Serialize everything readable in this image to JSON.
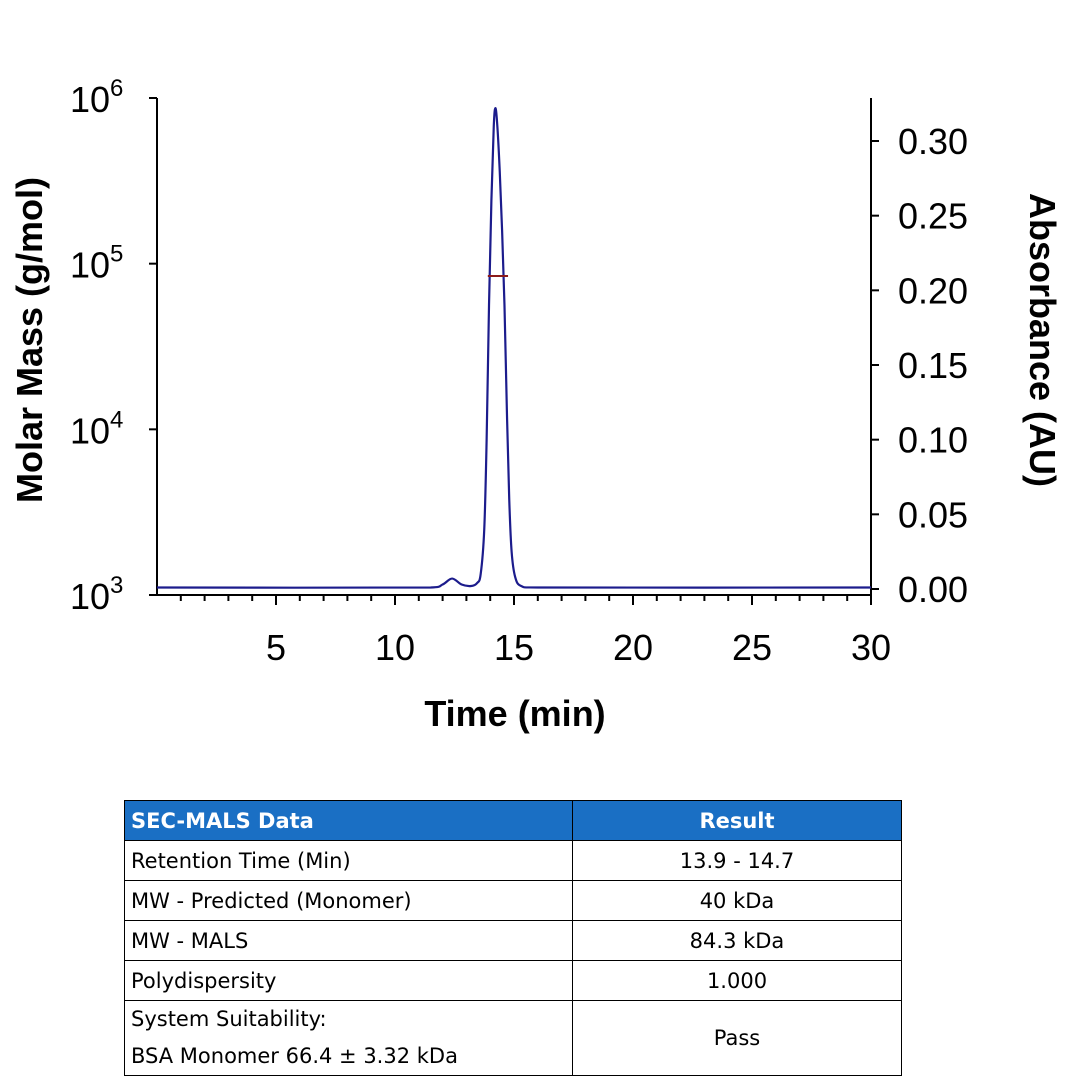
{
  "chart_data": {
    "type": "line",
    "xlabel": "Time (min)",
    "ylabel_left": "Molar Mass (g/mol)",
    "ylabel_right": "Absorbance (AU)",
    "xlim": [
      0,
      30
    ],
    "x_ticks": [
      "5",
      "10",
      "15",
      "20",
      "25",
      "30"
    ],
    "x_tick_values": [
      5,
      10,
      15,
      20,
      25,
      30
    ],
    "ylim_left": [
      1000,
      1000000
    ],
    "y_left_scale": "log",
    "y_left_ticks": [
      {
        "base": "10",
        "exp": "3",
        "value": 1000
      },
      {
        "base": "10",
        "exp": "4",
        "value": 10000
      },
      {
        "base": "10",
        "exp": "5",
        "value": 100000
      },
      {
        "base": "10",
        "exp": "6",
        "value": 1000000
      }
    ],
    "ylim_right": [
      0,
      0.33
    ],
    "y_right_ticks": [
      "0.00",
      "0.05",
      "0.10",
      "0.15",
      "0.20",
      "0.25",
      "0.30"
    ],
    "y_right_tick_values": [
      0,
      0.05,
      0.1,
      0.15,
      0.2,
      0.25,
      0.3
    ],
    "grid": false,
    "series": [
      {
        "axis": "right",
        "color": "#1c1c8c",
        "points": [
          [
            0,
            0.001
          ],
          [
            11.5,
            0.001
          ],
          [
            12.0,
            0.003
          ],
          [
            12.4,
            0.007
          ],
          [
            12.8,
            0.003
          ],
          [
            13.2,
            0.002
          ],
          [
            13.45,
            0.004
          ],
          [
            13.6,
            0.01
          ],
          [
            13.75,
            0.04
          ],
          [
            13.85,
            0.1
          ],
          [
            13.95,
            0.19
          ],
          [
            14.05,
            0.26
          ],
          [
            14.15,
            0.31
          ],
          [
            14.22,
            0.322
          ],
          [
            14.3,
            0.31
          ],
          [
            14.4,
            0.28
          ],
          [
            14.5,
            0.24
          ],
          [
            14.6,
            0.19
          ],
          [
            14.7,
            0.12
          ],
          [
            14.8,
            0.06
          ],
          [
            14.9,
            0.025
          ],
          [
            15.05,
            0.008
          ],
          [
            15.3,
            0.002
          ],
          [
            16,
            0.001
          ],
          [
            30,
            0.001
          ]
        ]
      },
      {
        "axis": "left",
        "color": "#8b1a1a",
        "points": [
          [
            13.9,
            84300
          ],
          [
            14.75,
            84300
          ]
        ]
      }
    ]
  },
  "table": {
    "headers": [
      "SEC-MALS Data",
      "Result"
    ],
    "rows": [
      [
        "Retention Time (Min)",
        "13.9 - 14.7"
      ],
      [
        "MW - Predicted (Monomer)",
        "40 kDa"
      ],
      [
        "MW - MALS",
        "84.3 kDa"
      ],
      [
        "Polydispersity",
        "1.000"
      ],
      [
        "System Suitability:",
        "Pass"
      ]
    ],
    "last_row_line2": "BSA Monomer 66.4 ± 3.32 kDa",
    "header_color": "#1a6fc4"
  }
}
